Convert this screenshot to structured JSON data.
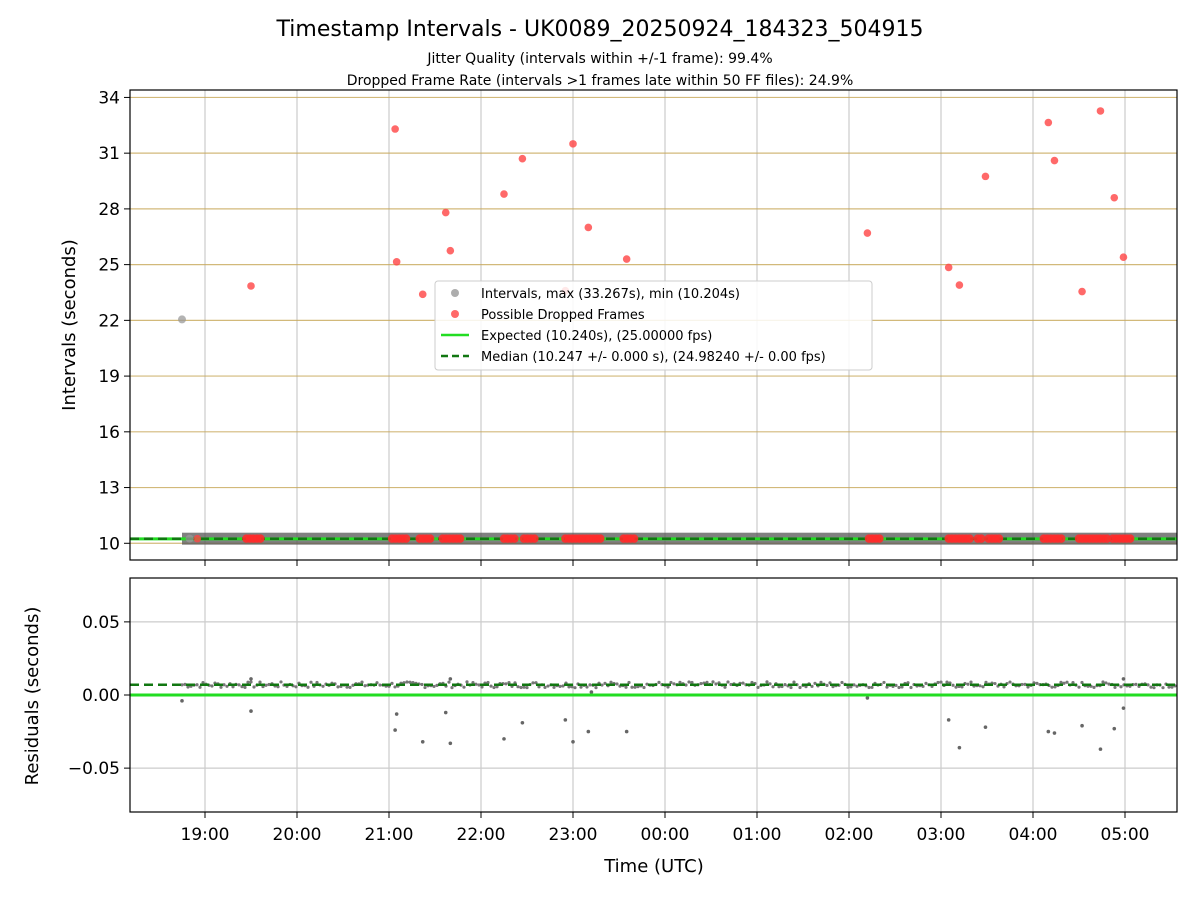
{
  "title": "Timestamp Intervals - UK0089_20250924_184323_504915",
  "subtitle_lines": [
    "Jitter Quality (intervals within +/-1 frame): 99.4%",
    "Dropped Frame Rate (intervals >1 frames late within 50 FF files): 24.9%"
  ],
  "chart_data": [
    {
      "type": "scatter",
      "ylabel": "Intervals (seconds)",
      "ylim": [
        9.1,
        34.4
      ],
      "yticks": [
        10,
        13,
        16,
        19,
        22,
        25,
        28,
        31,
        34
      ],
      "ygrid_color": "#c8a85a",
      "xgrid": true,
      "x_axis": "time (UTC) from 18:43 to 05:35",
      "legend_position": "center",
      "legend": [
        {
          "label": "Intervals, max (33.267s), min (10.204s)",
          "marker": "dot",
          "color": "#999999"
        },
        {
          "label": "Possible Dropped Frames",
          "marker": "dot",
          "color": "#ff4444"
        },
        {
          "label": "Expected (10.240s), (25.00000 fps)",
          "marker": "solid-line",
          "color": "#22dd22"
        },
        {
          "label": "Median (10.247 +/- 0.000 s), (24.98240 +/- 0.00 fps)",
          "marker": "dashed-line",
          "color": "#117711"
        }
      ],
      "series": [
        {
          "name": "Intervals, max (33.267s), min (10.204s)",
          "color": "#999999",
          "points": [
            [
              "18:45",
              22.05
            ],
            [
              "18:50",
              10.25
            ]
          ],
          "band": {
            "from": "18:45",
            "to": "05:35",
            "value": 10.247
          }
        },
        {
          "name": "Possible Dropped Frames",
          "color": "#ff4444",
          "points": [
            [
              "18:55",
              10.25
            ],
            [
              "19:30",
              23.85
            ],
            [
              "21:04",
              32.3
            ],
            [
              "21:05",
              25.15
            ],
            [
              "21:22",
              23.4
            ],
            [
              "21:37",
              27.8
            ],
            [
              "21:40",
              25.75
            ],
            [
              "22:15",
              28.8
            ],
            [
              "22:27",
              30.7
            ],
            [
              "22:55",
              23.6
            ],
            [
              "23:00",
              31.5
            ],
            [
              "23:10",
              27.0
            ],
            [
              "23:35",
              25.3
            ],
            [
              "02:12",
              26.7
            ],
            [
              "03:05",
              24.85
            ],
            [
              "03:12",
              23.9
            ],
            [
              "03:29",
              29.75
            ],
            [
              "04:10",
              32.65
            ],
            [
              "04:14",
              30.6
            ],
            [
              "04:32",
              23.55
            ],
            [
              "04:44",
              33.27
            ],
            [
              "04:53",
              28.6
            ],
            [
              "04:59",
              25.4
            ]
          ],
          "baseline_clusters": [
            [
              "19:27",
              "19:37"
            ],
            [
              "21:02",
              "21:13"
            ],
            [
              "21:20",
              "21:28"
            ],
            [
              "21:35",
              "21:48"
            ],
            [
              "22:15",
              "22:23"
            ],
            [
              "22:28",
              "22:36"
            ],
            [
              "22:55",
              "23:20"
            ],
            [
              "23:33",
              "23:42"
            ],
            [
              "02:13",
              "02:20"
            ],
            [
              "03:05",
              "03:20"
            ],
            [
              "03:24",
              "03:28"
            ],
            [
              "03:31",
              "03:38"
            ],
            [
              "04:07",
              "04:20"
            ],
            [
              "04:30",
              "04:50"
            ],
            [
              "04:52",
              "05:05"
            ]
          ],
          "baseline_value": 10.25
        },
        {
          "name": "Expected (10.240s), (25.00000 fps)",
          "color": "#22dd22",
          "value": 10.24
        },
        {
          "name": "Median (10.247 +/- 0.000 s), (24.98240 +/- 0.00 fps)",
          "color": "#117711",
          "value": 10.247
        }
      ]
    },
    {
      "type": "scatter",
      "ylabel": "Residuals (seconds)",
      "xlabel": "Time (UTC)",
      "ylim": [
        -0.08,
        0.08
      ],
      "yticks": [
        0.05,
        0.0,
        -0.05
      ],
      "ytick_labels": [
        "0.05",
        "0.00",
        "−0.05"
      ],
      "xticks": [
        "19:00",
        "20:00",
        "21:00",
        "22:00",
        "23:00",
        "00:00",
        "01:00",
        "02:00",
        "03:00",
        "04:00",
        "05:00"
      ],
      "grid": true,
      "expected_residual": 0.0,
      "median_residual": 0.007,
      "residual_band": {
        "from": "18:45",
        "to": "05:35",
        "center": 0.007
      },
      "outliers": [
        [
          "18:45",
          -0.004
        ],
        [
          "19:30",
          -0.011
        ],
        [
          "21:04",
          -0.024
        ],
        [
          "21:05",
          -0.013
        ],
        [
          "21:22",
          -0.032
        ],
        [
          "21:37",
          -0.012
        ],
        [
          "21:40",
          -0.033
        ],
        [
          "22:15",
          -0.03
        ],
        [
          "22:27",
          -0.019
        ],
        [
          "22:55",
          -0.017
        ],
        [
          "23:00",
          -0.032
        ],
        [
          "23:10",
          -0.025
        ],
        [
          "23:12",
          0.002
        ],
        [
          "23:35",
          -0.025
        ],
        [
          "02:12",
          -0.002
        ],
        [
          "03:05",
          -0.017
        ],
        [
          "03:12",
          -0.036
        ],
        [
          "03:29",
          -0.022
        ],
        [
          "04:10",
          -0.025
        ],
        [
          "04:14",
          -0.026
        ],
        [
          "04:32",
          -0.021
        ],
        [
          "04:44",
          -0.037
        ],
        [
          "04:53",
          -0.023
        ],
        [
          "04:59",
          -0.009
        ],
        [
          "19:30",
          0.011
        ],
        [
          "21:40",
          0.011
        ],
        [
          "04:59",
          0.011
        ]
      ]
    }
  ]
}
